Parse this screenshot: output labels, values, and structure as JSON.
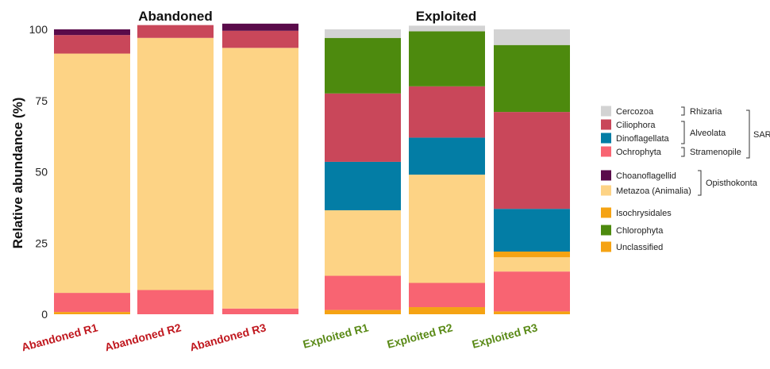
{
  "chart_data": {
    "type": "bar",
    "stacked": true,
    "ylabel": "Relative abundance (%)",
    "ylim": [
      0,
      100
    ],
    "yticks": [
      0,
      25,
      50,
      75,
      100
    ],
    "panels": [
      {
        "title": "Abandoned",
        "label_color": "#c0171e",
        "categories": [
          "Abandoned R1",
          "Abandoned R2",
          "Abandoned R3"
        ]
      },
      {
        "title": "Exploited",
        "label_color": "#5a8a17",
        "categories": [
          "Exploited R1",
          "Exploited R2",
          "Exploited R3"
        ]
      }
    ],
    "series": [
      {
        "name": "Unclassified",
        "color": "#f5a313",
        "values": [
          0.8,
          0,
          0,
          1.5,
          2.5,
          1
        ]
      },
      {
        "name": "Ochrophyta",
        "color": "#f86472",
        "values": [
          6.7,
          8.5,
          2,
          12,
          8.5,
          14
        ]
      },
      {
        "name": "Metazoa (Animalia)",
        "color": "#fdd385",
        "values": [
          84,
          88.5,
          91.5,
          23,
          38,
          5
        ]
      },
      {
        "name": "Isochrysidales",
        "color": "#f5a313",
        "values": [
          0,
          0,
          0,
          0,
          0,
          2
        ]
      },
      {
        "name": "Dinoflagellata",
        "color": "#037da5",
        "values": [
          0,
          0,
          0,
          17,
          13,
          15
        ]
      },
      {
        "name": "Ciliophora",
        "color": "#c9475a",
        "values": [
          6.5,
          4.5,
          6,
          24,
          18,
          34
        ]
      },
      {
        "name": "Chlorophyta",
        "color": "#4d8a0e",
        "values": [
          0,
          0,
          0,
          19.5,
          19.3,
          23.5
        ]
      },
      {
        "name": "Choanoflagellid",
        "color": "#5a0b4a",
        "values": [
          2,
          0,
          2.5,
          0,
          0,
          0
        ]
      },
      {
        "name": "Cercozoa",
        "color": "#d3d3d3",
        "values": [
          0,
          0,
          0,
          3,
          2,
          5.5
        ]
      }
    ],
    "legend": {
      "position": "right",
      "items": [
        {
          "name": "Cercozoa",
          "color": "#d3d3d3"
        },
        {
          "name": "Ciliophora",
          "color": "#c9475a"
        },
        {
          "name": "Dinoflagellata",
          "color": "#037da5"
        },
        {
          "name": "Ochrophyta",
          "color": "#f86472"
        },
        {
          "name": "Choanoflagellid",
          "color": "#5a0b4a"
        },
        {
          "name": "Metazoa (Animalia)",
          "color": "#fdd385"
        },
        {
          "name": "Isochrysidales",
          "color": "#f5a313"
        },
        {
          "name": "Chlorophyta",
          "color": "#4d8a0e"
        },
        {
          "name": "Unclassified",
          "color": "#f5a313"
        }
      ],
      "groups": [
        {
          "label": "Rhizaria",
          "members": [
            "Cercozoa"
          ]
        },
        {
          "label": "Alveolata",
          "members": [
            "Ciliophora",
            "Dinoflagellata"
          ]
        },
        {
          "label": "Stramenopile",
          "members": [
            "Ochrophyta"
          ]
        },
        {
          "label": "SAR",
          "members": [
            "Cercozoa",
            "Ciliophora",
            "Dinoflagellata",
            "Ochrophyta"
          ]
        },
        {
          "label": "Opisthokonta",
          "members": [
            "Choanoflagellid",
            "Metazoa (Animalia)"
          ]
        }
      ]
    }
  }
}
